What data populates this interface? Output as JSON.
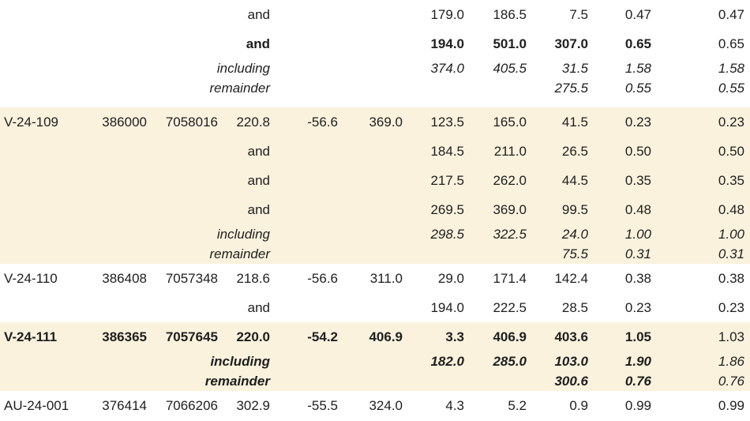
{
  "colors": {
    "band_cream": "#faf2dd",
    "band_white": "#ffffff",
    "text": "#1e1e1e"
  },
  "table": {
    "sections": [
      {
        "rows": [
          {
            "style": "normal",
            "tight": false,
            "cells": [
              "",
              "",
              "",
              "and",
              "",
              "",
              "179.0",
              "186.5",
              "7.5",
              "0.47",
              "0.47"
            ]
          },
          {
            "style": "bold",
            "tight": false,
            "cells": [
              "",
              "",
              "",
              "and",
              "",
              "",
              "194.0",
              "501.0",
              "307.0",
              "0.65",
              "0.65"
            ]
          },
          {
            "style": "italic",
            "tight": true,
            "cells": [
              "",
              "",
              "",
              "including",
              "",
              "",
              "374.0",
              "405.5",
              "31.5",
              "1.58",
              "1.58"
            ]
          },
          {
            "style": "italic",
            "tight": true,
            "cells": [
              "",
              "",
              "",
              "remainder",
              "",
              "",
              "",
              "",
              "275.5",
              "0.55",
              "0.55"
            ]
          }
        ]
      },
      {
        "rows": [
          {
            "style": "normal",
            "tight": false,
            "cells": [
              "V-24-109",
              "386000",
              "7058016",
              "220.8",
              "-56.6",
              "369.0",
              "123.5",
              "165.0",
              "41.5",
              "0.23",
              "0.23"
            ]
          },
          {
            "style": "normal",
            "tight": false,
            "cells": [
              "",
              "",
              "",
              "and",
              "",
              "",
              "184.5",
              "211.0",
              "26.5",
              "0.50",
              "0.50"
            ]
          },
          {
            "style": "normal",
            "tight": false,
            "cells": [
              "",
              "",
              "",
              "and",
              "",
              "",
              "217.5",
              "262.0",
              "44.5",
              "0.35",
              "0.35"
            ]
          },
          {
            "style": "normal",
            "tight": false,
            "cells": [
              "",
              "",
              "",
              "and",
              "",
              "",
              "269.5",
              "369.0",
              "99.5",
              "0.48",
              "0.48"
            ]
          },
          {
            "style": "italic",
            "tight": true,
            "cells": [
              "",
              "",
              "",
              "including",
              "",
              "",
              "298.5",
              "322.5",
              "24.0",
              "1.00",
              "1.00"
            ]
          },
          {
            "style": "italic",
            "tight": true,
            "cells": [
              "",
              "",
              "",
              "remainder",
              "",
              "",
              "",
              "",
              "75.5",
              "0.31",
              "0.31"
            ]
          }
        ]
      },
      {
        "rows": [
          {
            "style": "normal",
            "tight": false,
            "cells": [
              "V-24-110",
              "386408",
              "7057348",
              "218.6",
              "-56.6",
              "311.0",
              "29.0",
              "171.4",
              "142.4",
              "0.38",
              "0.38"
            ]
          },
          {
            "style": "normal",
            "tight": false,
            "cells": [
              "",
              "",
              "",
              "and",
              "",
              "",
              "194.0",
              "222.5",
              "28.5",
              "0.23",
              "0.23"
            ]
          }
        ]
      },
      {
        "rows": [
          {
            "style": "bold",
            "tight": false,
            "cells": [
              "V-24-111",
              "386365",
              "7057645",
              "220.0",
              "-54.2",
              "406.9",
              "3.3",
              "406.9",
              "403.6",
              "1.05",
              "1.03"
            ]
          },
          {
            "style": "bold-italic",
            "tight": true,
            "cells": [
              "",
              "",
              "",
              "including",
              "",
              "",
              "182.0",
              "285.0",
              "103.0",
              "1.90",
              "1.86"
            ]
          },
          {
            "style": "bold-italic",
            "tight": true,
            "cells": [
              "",
              "",
              "",
              "remainder",
              "",
              "",
              "",
              "",
              "300.6",
              "0.76",
              "0.76"
            ]
          }
        ]
      },
      {
        "rows": [
          {
            "style": "normal",
            "tight": false,
            "cells": [
              "AU-24-001",
              "376414",
              "7066206",
              "302.9",
              "-55.5",
              "324.0",
              "4.3",
              "5.2",
              "0.9",
              "0.99",
              "0.99"
            ]
          }
        ]
      }
    ]
  }
}
